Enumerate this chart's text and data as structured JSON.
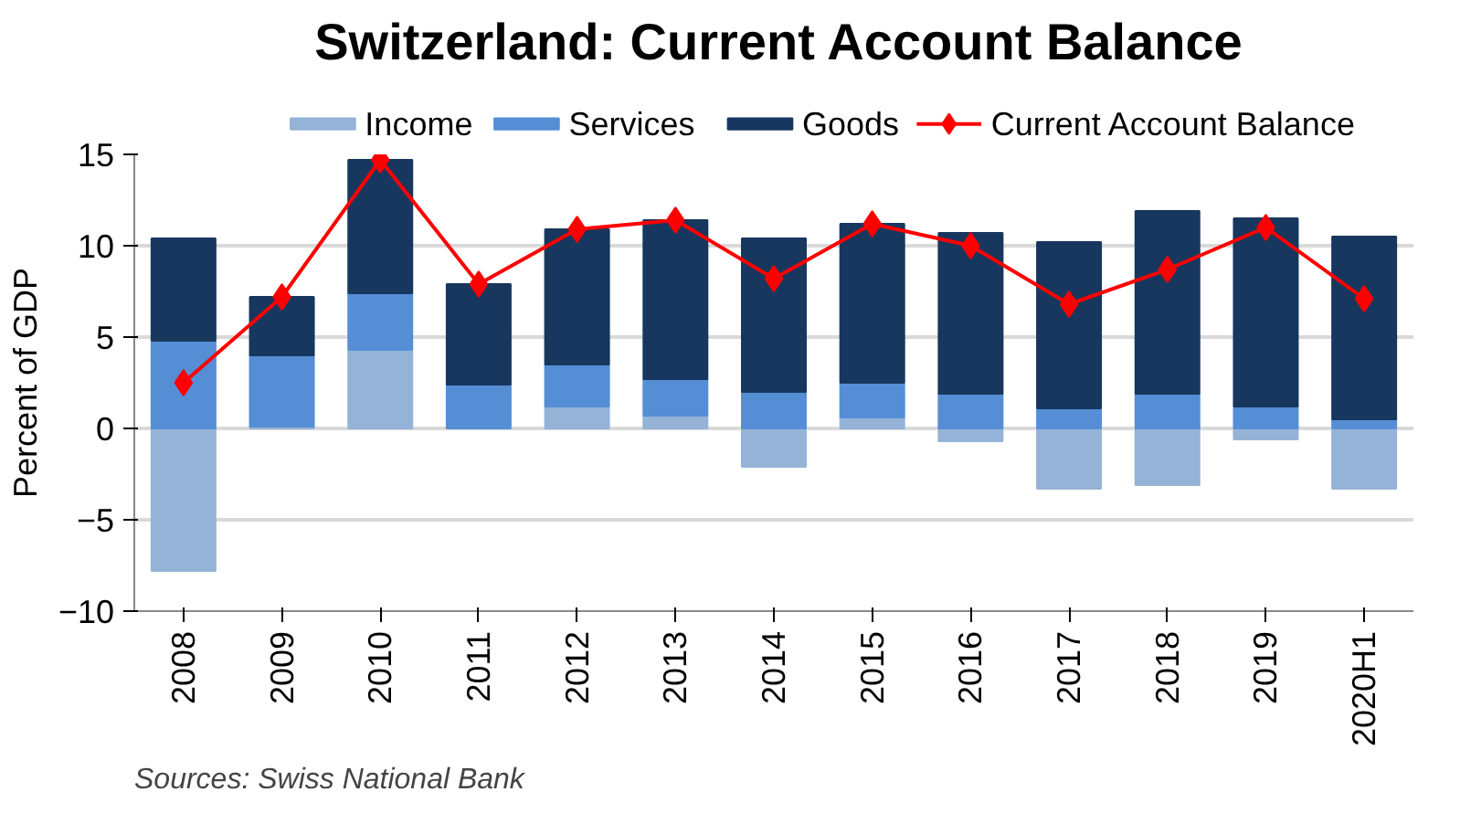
{
  "chart_data": {
    "type": "bar",
    "stacked": true,
    "title": "Switzerland: Current Account Balance",
    "ylabel": "Percent of GDP",
    "categories": [
      "2008",
      "2009",
      "2010",
      "2011",
      "2012",
      "2013",
      "2014",
      "2015",
      "2016",
      "2017",
      "2018",
      "2019",
      "2020H1"
    ],
    "series": [
      {
        "name": "Income",
        "color": "#95b3d7",
        "values": [
          -7.8,
          0.1,
          4.3,
          0.0,
          1.2,
          0.7,
          -2.1,
          0.6,
          -0.7,
          -3.3,
          -3.1,
          -0.6,
          -3.3
        ]
      },
      {
        "name": "Services",
        "color": "#558ed5",
        "values": [
          4.8,
          3.9,
          3.1,
          2.4,
          2.3,
          2.0,
          2.0,
          1.9,
          1.9,
          1.1,
          1.9,
          1.2,
          0.5
        ]
      },
      {
        "name": "Goods",
        "color": "#17375e",
        "values": [
          5.6,
          3.2,
          7.3,
          5.5,
          7.4,
          8.7,
          8.4,
          8.7,
          8.8,
          9.1,
          10.0,
          10.3,
          10.0
        ]
      },
      {
        "name": "Current Account Balance",
        "type": "line",
        "color": "#ff0000",
        "marker": "diamond",
        "values": [
          2.5,
          7.2,
          14.7,
          7.9,
          10.9,
          11.4,
          8.2,
          11.2,
          10.0,
          6.8,
          8.7,
          11.0,
          7.1
        ]
      }
    ],
    "ylim": [
      -10,
      15
    ],
    "yticks": [
      -10,
      -5,
      0,
      5,
      10,
      15
    ],
    "grid": "y",
    "legend": "top",
    "annotations": [
      "Sources: Swiss National Bank"
    ]
  }
}
